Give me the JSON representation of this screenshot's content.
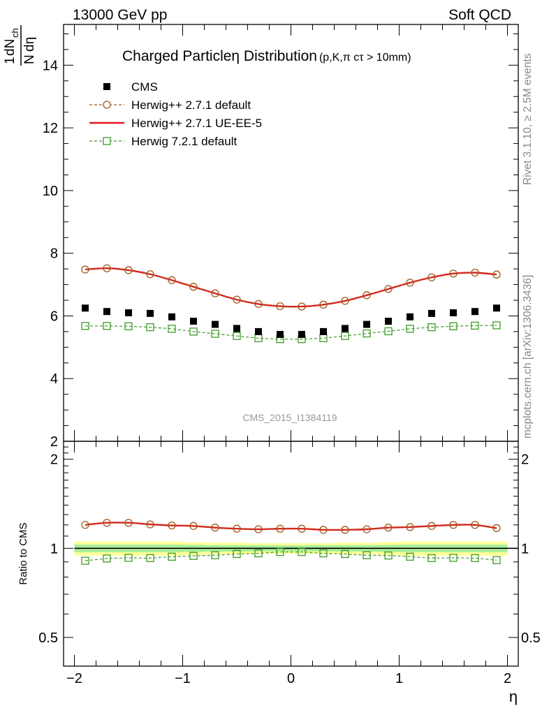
{
  "header": {
    "left": "13000 GeV pp",
    "right": "Soft QCD"
  },
  "side_labels": {
    "rivet": "Rivet 3.1.10, ≥ 2.5M events",
    "mcplots": "mcplots.cern.ch [arXiv:1306.3436]"
  },
  "chart_data": [
    {
      "type": "scatter",
      "panel": "main",
      "title_main": "Charged Particleη Distribution",
      "title_sub": "(p,K,π cτ > 10mm)",
      "ylabel": "1/N dN_ch/dη",
      "xlim": [
        -2.1,
        2.1
      ],
      "ylim": [
        2,
        15.3
      ],
      "yticks": [
        2,
        4,
        6,
        8,
        10,
        12,
        14
      ],
      "x": [
        -1.9,
        -1.7,
        -1.5,
        -1.3,
        -1.1,
        -0.9,
        -0.7,
        -0.5,
        -0.3,
        -0.1,
        0.1,
        0.3,
        0.5,
        0.7,
        0.9,
        1.1,
        1.3,
        1.5,
        1.7,
        1.9
      ],
      "watermark": "CMS_2015_I1384119",
      "legend_position": "top-left",
      "series": [
        {
          "name": "CMS",
          "style": "square-marker",
          "color": "#000000",
          "values": [
            6.25,
            6.14,
            6.1,
            6.08,
            5.97,
            5.83,
            5.73,
            5.6,
            5.5,
            5.41,
            5.41,
            5.5,
            5.6,
            5.73,
            5.83,
            5.97,
            6.08,
            6.1,
            6.14,
            6.25
          ]
        },
        {
          "name": "Herwig++ 2.7.1 default",
          "style": "dashed-circle",
          "color": "#a0581a",
          "values": [
            7.48,
            7.52,
            7.46,
            7.33,
            7.14,
            6.93,
            6.72,
            6.52,
            6.38,
            6.31,
            6.3,
            6.36,
            6.48,
            6.66,
            6.86,
            7.06,
            7.23,
            7.35,
            7.38,
            7.32
          ]
        },
        {
          "name": "Herwig++ 2.7.1 UE-EE-5",
          "style": "solid",
          "color": "#e8141b",
          "values": [
            7.48,
            7.52,
            7.46,
            7.33,
            7.14,
            6.93,
            6.72,
            6.52,
            6.38,
            6.31,
            6.3,
            6.36,
            6.48,
            6.66,
            6.86,
            7.06,
            7.23,
            7.35,
            7.38,
            7.32
          ]
        },
        {
          "name": "Herwig 7.2.1 default",
          "style": "dashed-open-square",
          "color": "#3d9a26",
          "values": [
            5.68,
            5.68,
            5.67,
            5.64,
            5.59,
            5.5,
            5.43,
            5.36,
            5.29,
            5.26,
            5.26,
            5.29,
            5.36,
            5.44,
            5.51,
            5.59,
            5.64,
            5.67,
            5.69,
            5.7
          ]
        }
      ]
    },
    {
      "type": "scatter",
      "panel": "ratio",
      "ylabel": "Ratio to CMS",
      "xlabel": "η",
      "xlim": [
        -2.1,
        2.1
      ],
      "ylim": [
        0.4,
        2.3
      ],
      "log_y": true,
      "yticks": [
        0.5,
        1,
        2
      ],
      "ytick_labels": [
        "0.5",
        "1",
        "2"
      ],
      "xticks": [
        -2,
        -1,
        0,
        1,
        2
      ],
      "xtick_labels": [
        "−2",
        "−1",
        "0",
        "1",
        "2"
      ],
      "x": [
        -1.9,
        -1.7,
        -1.5,
        -1.3,
        -1.1,
        -0.9,
        -0.7,
        -0.5,
        -0.3,
        -0.1,
        0.1,
        0.3,
        0.5,
        0.7,
        0.9,
        1.1,
        1.3,
        1.5,
        1.7,
        1.9
      ],
      "bands": {
        "outer": {
          "color": "#ffff99",
          "halfwidth": [
            0.055,
            0.055,
            0.055,
            0.055,
            0.055,
            0.05,
            0.045,
            0.045,
            0.04,
            0.04,
            0.04,
            0.04,
            0.045,
            0.045,
            0.05,
            0.055,
            0.055,
            0.055,
            0.055,
            0.055
          ]
        },
        "inner": {
          "color": "#aaee99",
          "halfwidth": [
            0.03,
            0.03,
            0.03,
            0.03,
            0.03,
            0.028,
            0.026,
            0.025,
            0.024,
            0.023,
            0.023,
            0.024,
            0.025,
            0.026,
            0.028,
            0.03,
            0.03,
            0.03,
            0.03,
            0.03
          ]
        }
      },
      "series": [
        {
          "name": "Herwig++ 2.7.1 default",
          "style": "dashed-circle",
          "color": "#a0581a",
          "values": [
            1.2,
            1.22,
            1.22,
            1.205,
            1.195,
            1.19,
            1.175,
            1.165,
            1.16,
            1.165,
            1.165,
            1.155,
            1.155,
            1.16,
            1.175,
            1.18,
            1.19,
            1.2,
            1.2,
            1.17
          ]
        },
        {
          "name": "Herwig++ 2.7.1 UE-EE-5",
          "style": "solid",
          "color": "#e8141b",
          "values": [
            1.2,
            1.22,
            1.22,
            1.205,
            1.195,
            1.19,
            1.175,
            1.165,
            1.16,
            1.165,
            1.165,
            1.155,
            1.155,
            1.16,
            1.175,
            1.18,
            1.19,
            1.2,
            1.2,
            1.17
          ]
        },
        {
          "name": "Herwig 7.2.1 default",
          "style": "dashed-open-square",
          "color": "#3d9a26",
          "values": [
            0.908,
            0.924,
            0.929,
            0.927,
            0.937,
            0.943,
            0.948,
            0.957,
            0.962,
            0.972,
            0.972,
            0.962,
            0.957,
            0.948,
            0.946,
            0.937,
            0.927,
            0.929,
            0.927,
            0.912
          ]
        }
      ]
    }
  ]
}
